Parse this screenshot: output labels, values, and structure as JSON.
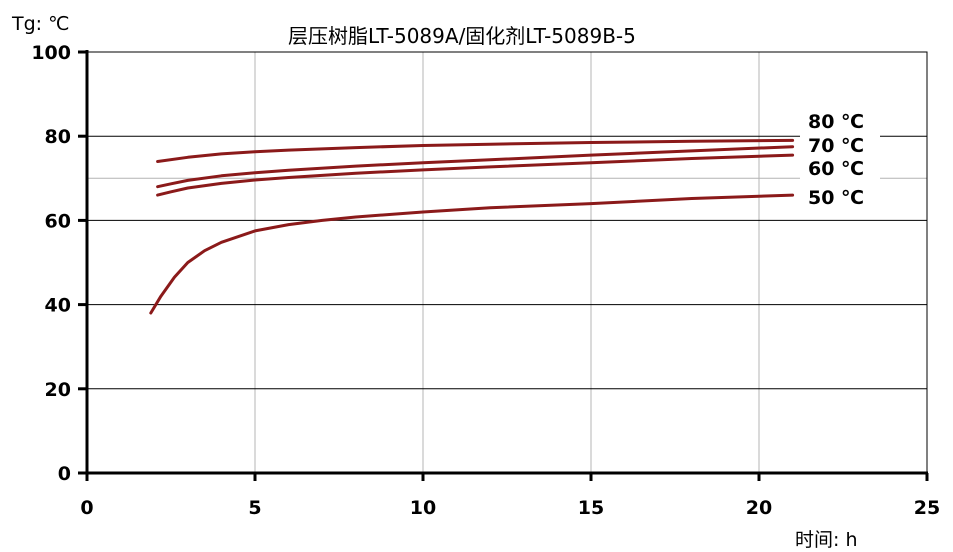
{
  "chart_data": {
    "type": "line",
    "title": "层压树脂LT-5089A/固化剂LT-5089B-5",
    "ylabel": "Tg: ℃",
    "xlabel": "时间: h",
    "xlim": [
      0,
      25
    ],
    "ylim": [
      0,
      100
    ],
    "x_ticks": [
      "0",
      "5",
      "10",
      "15",
      "20",
      "25"
    ],
    "y_ticks": [
      "0",
      "20",
      "40",
      "60",
      "80",
      "100"
    ],
    "grid": true,
    "line_color": "#8B1A1A",
    "series": [
      {
        "name": "80 ℃",
        "x": [
          2.1,
          3,
          4,
          5,
          6,
          8,
          10,
          12,
          15,
          18,
          21
        ],
        "y": [
          74,
          75,
          75.8,
          76.3,
          76.7,
          77.3,
          77.8,
          78.1,
          78.5,
          78.8,
          79
        ]
      },
      {
        "name": "70 ℃",
        "x": [
          2.1,
          2.5,
          3,
          4,
          5,
          6,
          8,
          10,
          12,
          15,
          18,
          21
        ],
        "y": [
          68,
          68.7,
          69.5,
          70.6,
          71.3,
          71.9,
          72.9,
          73.7,
          74.4,
          75.5,
          76.5,
          77.5
        ]
      },
      {
        "name": "60 ℃",
        "x": [
          2.1,
          2.5,
          3,
          4,
          5,
          6,
          8,
          10,
          12,
          15,
          18,
          21
        ],
        "y": [
          66,
          66.8,
          67.7,
          68.8,
          69.6,
          70.2,
          71.2,
          72,
          72.7,
          73.7,
          74.7,
          75.5
        ]
      },
      {
        "name": "50 ℃",
        "x": [
          1.9,
          2.2,
          2.6,
          3,
          3.5,
          4,
          5,
          6,
          7,
          8,
          10,
          12,
          15,
          18,
          21
        ],
        "y": [
          38,
          42,
          46.5,
          50,
          52.8,
          54.8,
          57.5,
          59,
          60,
          60.8,
          62,
          63,
          64,
          65.2,
          66
        ]
      }
    ]
  }
}
